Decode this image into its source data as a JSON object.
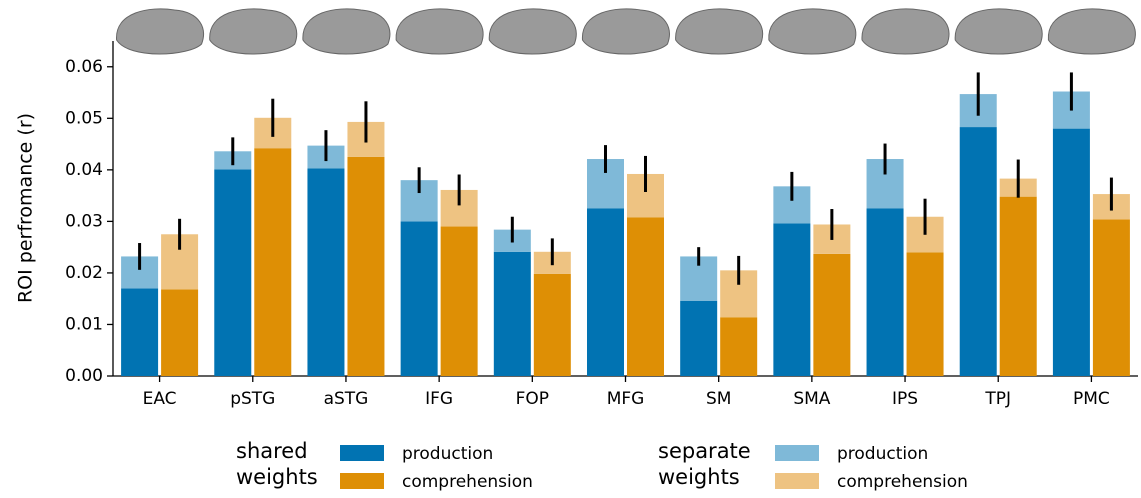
{
  "chart_data": {
    "type": "bar",
    "ylabel": "ROI perfromance (r)",
    "categories": [
      "EAC",
      "pSTG",
      "aSTG",
      "IFG",
      "FOP",
      "MFG",
      "SM",
      "SMA",
      "IPS",
      "TPJ",
      "PMC"
    ],
    "series": [
      {
        "name": "production",
        "group": "shared weights",
        "color": "#0173b2",
        "values": [
          0.017,
          0.0401,
          0.0403,
          0.03,
          0.0241,
          0.0325,
          0.0146,
          0.0296,
          0.0325,
          0.0483,
          0.048
        ]
      },
      {
        "name": "comprehension",
        "group": "shared weights",
        "color": "#de8f05",
        "values": [
          0.0168,
          0.0442,
          0.0425,
          0.029,
          0.0198,
          0.0308,
          0.0114,
          0.0237,
          0.024,
          0.0348,
          0.0304
        ]
      },
      {
        "name": "production",
        "group": "separate weights",
        "color": "#7fb9d8",
        "values": [
          0.0062,
          0.0035,
          0.0044,
          0.008,
          0.0043,
          0.0096,
          0.0086,
          0.0072,
          0.0096,
          0.0064,
          0.0072
        ],
        "errors": [
          0.0026,
          0.0027,
          0.003,
          0.0025,
          0.0025,
          0.0027,
          0.0018,
          0.0028,
          0.003,
          0.0042,
          0.0037
        ]
      },
      {
        "name": "comprehension",
        "group": "separate weights",
        "color": "#eec382",
        "values": [
          0.0107,
          0.0059,
          0.0068,
          0.0071,
          0.0043,
          0.0084,
          0.0091,
          0.0057,
          0.0069,
          0.0035,
          0.0049
        ],
        "errors": [
          0.003,
          0.0037,
          0.004,
          0.003,
          0.0026,
          0.0035,
          0.0028,
          0.003,
          0.0035,
          0.0037,
          0.0032
        ]
      }
    ],
    "ylim": [
      0,
      0.065
    ],
    "yticks": [
      {
        "value": 0,
        "label": "0.00"
      },
      {
        "value": 0.01,
        "label": "0.01"
      },
      {
        "value": 0.02,
        "label": "0.02"
      },
      {
        "value": 0.03,
        "label": "0.03"
      },
      {
        "value": 0.04,
        "label": "0.04"
      },
      {
        "value": 0.05,
        "label": "0.05"
      },
      {
        "value": 0.06,
        "label": "0.06"
      }
    ],
    "grid": false
  }
}
